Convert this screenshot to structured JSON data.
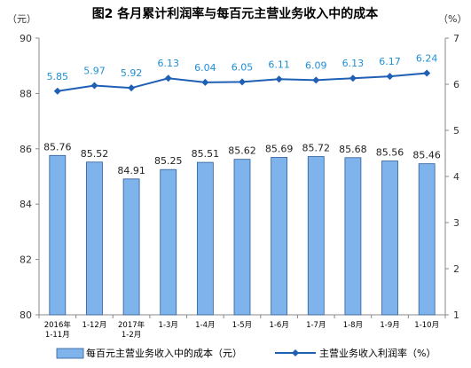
{
  "chart_data": {
    "type": "bar",
    "title": "图2  各月累计利润率与每百元主营业务收入中的成本",
    "left_unit": "（元）",
    "right_unit": "（%）",
    "categories": [
      [
        "2016年",
        "1-11月"
      ],
      [
        "1-12月"
      ],
      [
        "2017年",
        "1-2月"
      ],
      [
        "1-3月"
      ],
      [
        "1-4月"
      ],
      [
        "1-5月"
      ],
      [
        "1-6月"
      ],
      [
        "1-7月"
      ],
      [
        "1-8月"
      ],
      [
        "1-9月"
      ],
      [
        "1-10月"
      ]
    ],
    "y_left": {
      "min": 80,
      "max": 90,
      "ticks": [
        80,
        82,
        84,
        86,
        88,
        90
      ]
    },
    "y_right": {
      "min": 1,
      "max": 7,
      "ticks": [
        1,
        2,
        3,
        4,
        5,
        6,
        7
      ]
    },
    "series": [
      {
        "name": "每百元主营业务收入中的成本（元）",
        "type": "bar",
        "axis": "left",
        "color": "#7fb3ec",
        "stroke": "#2f5d98",
        "values": [
          85.76,
          85.52,
          84.91,
          85.25,
          85.51,
          85.62,
          85.69,
          85.72,
          85.68,
          85.56,
          85.46
        ],
        "labels": [
          "85.76",
          "85.52",
          "84.91",
          "85.25",
          "85.51",
          "85.62",
          "85.69",
          "85.72",
          "85.68",
          "85.56",
          "85.46"
        ]
      },
      {
        "name": "主营业务收入利润率（%）",
        "type": "line",
        "axis": "right",
        "color": "#1f5fb4",
        "label_color": "#1f8fd6",
        "values": [
          5.85,
          5.97,
          5.92,
          6.13,
          6.04,
          6.05,
          6.11,
          6.09,
          6.13,
          6.17,
          6.24
        ],
        "labels": [
          "5.85",
          "5.97",
          "5.92",
          "6.13",
          "6.04",
          "6.05",
          "6.11",
          "6.09",
          "6.13",
          "6.17",
          "6.24"
        ]
      }
    ],
    "legend_position": "bottom",
    "grid": false
  }
}
